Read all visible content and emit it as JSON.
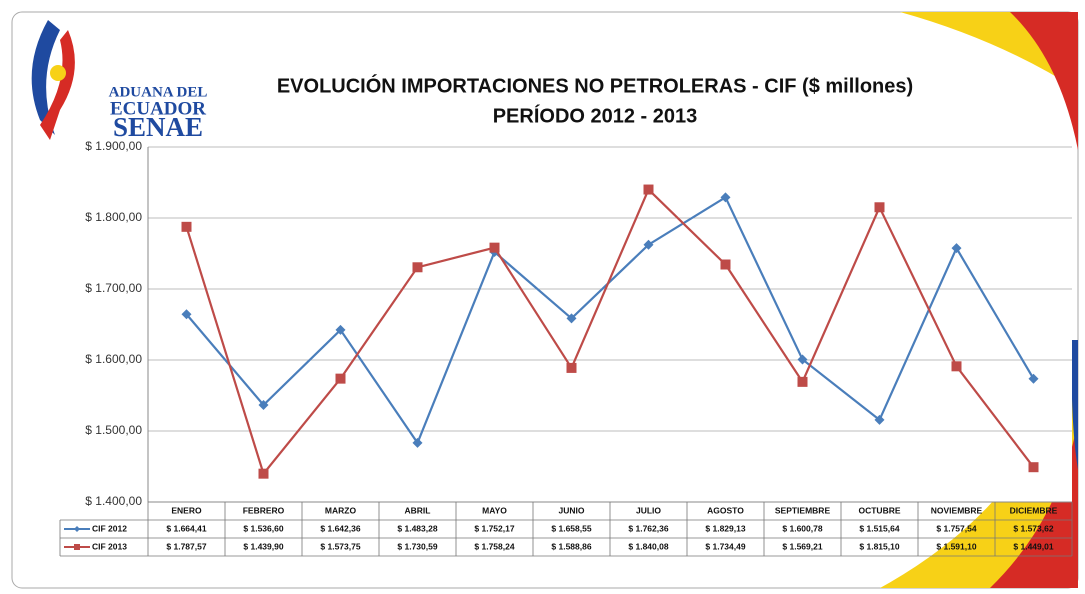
{
  "logo": {
    "line1": "ADUANA DEL",
    "line2": "ECUADOR",
    "line3": "SENAE"
  },
  "chart_data": {
    "type": "line",
    "title": "EVOLUCIÓN IMPORTACIONES NO PETROLERAS - CIF ($ millones)",
    "subtitle": "PERÍODO 2012 - 2013",
    "categories": [
      "ENERO",
      "FEBRERO",
      "MARZO",
      "ABRIL",
      "MAYO",
      "JUNIO",
      "JULIO",
      "AGOSTO",
      "SEPTIEMBRE",
      "OCTUBRE",
      "NOVIEMBRE",
      "DICIEMBRE"
    ],
    "series": [
      {
        "name": "CIF 2012",
        "color": "#4a7ebb",
        "marker": "diamond",
        "values": [
          1664.41,
          1536.6,
          1642.36,
          1483.28,
          1752.17,
          1658.55,
          1762.36,
          1829.13,
          1600.78,
          1515.64,
          1757.54,
          1573.62
        ],
        "value_labels": [
          "$ 1.664,41",
          "$ 1.536,60",
          "$ 1.642,36",
          "$ 1.483,28",
          "$ 1.752,17",
          "$ 1.658,55",
          "$ 1.762,36",
          "$ 1.829,13",
          "$ 1.600,78",
          "$ 1.515,64",
          "$ 1.757,54",
          "$ 1.573,62"
        ]
      },
      {
        "name": "CIF 2013",
        "color": "#be4b48",
        "marker": "square",
        "values": [
          1787.57,
          1439.9,
          1573.75,
          1730.59,
          1758.24,
          1588.86,
          1840.08,
          1734.49,
          1569.21,
          1815.1,
          1591.1,
          1449.01
        ],
        "value_labels": [
          "$ 1.787,57",
          "$ 1.439,90",
          "$ 1.573,75",
          "$ 1.730,59",
          "$ 1.758,24",
          "$ 1.588,86",
          "$ 1.840,08",
          "$ 1.734,49",
          "$ 1.569,21",
          "$ 1.815,10",
          "$ 1.591,10",
          "$ 1.449,01"
        ]
      }
    ],
    "ylim": [
      1400,
      1900
    ],
    "yticks": [
      {
        "value": 1400,
        "label": "$ 1.400,00"
      },
      {
        "value": 1500,
        "label": "$ 1.500,00"
      },
      {
        "value": 1600,
        "label": "$ 1.600,00"
      },
      {
        "value": 1700,
        "label": "$ 1.700,00"
      },
      {
        "value": 1800,
        "label": "$ 1.800,00"
      },
      {
        "value": 1900,
        "label": "$ 1.900,00"
      }
    ],
    "grid": true
  }
}
